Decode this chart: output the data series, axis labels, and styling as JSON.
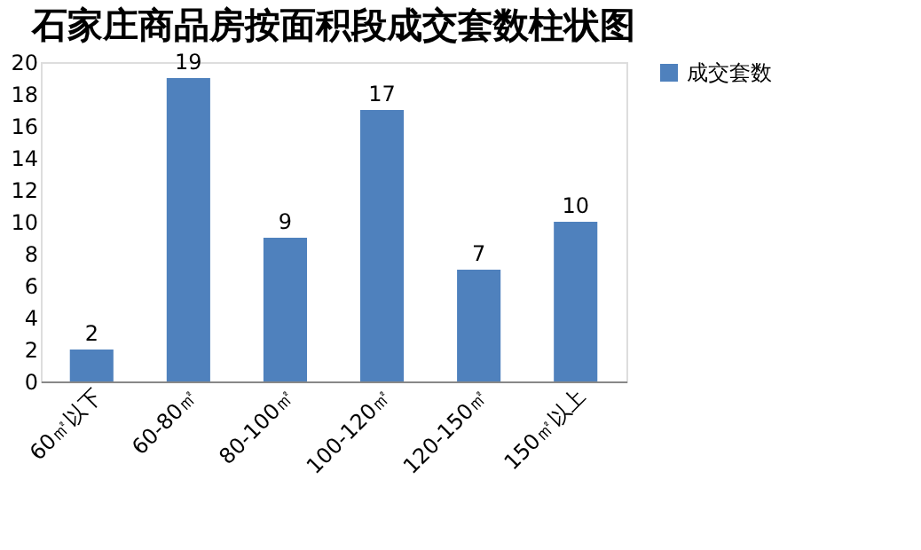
{
  "chart_data": {
    "type": "bar",
    "title": "石家庄商品房按面积段成交套数柱状图",
    "categories": [
      "60㎡以下",
      "60-80㎡",
      "80-100㎡",
      "100-120㎡",
      "120-150㎡",
      "150㎡以上"
    ],
    "series": [
      {
        "name": "成交套数",
        "color": "#4f81bd",
        "values": [
          2,
          19,
          9,
          17,
          7,
          10
        ]
      }
    ],
    "ylim": [
      0,
      20
    ],
    "yticks": [
      0,
      2,
      4,
      6,
      8,
      10,
      12,
      14,
      16,
      18,
      20
    ],
    "data_labels": true,
    "legend": "right",
    "grid": false
  }
}
